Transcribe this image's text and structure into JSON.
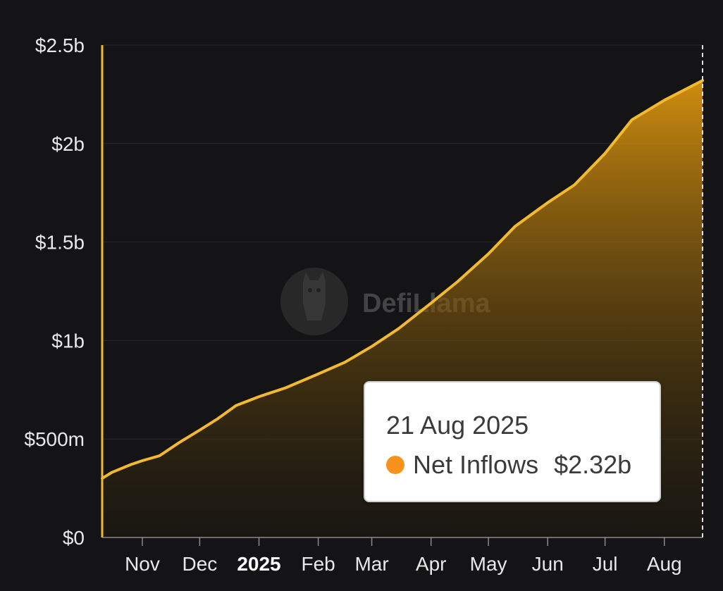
{
  "colors": {
    "background": "#141416",
    "line": "#f3ba2f",
    "area_top": "#d9930f",
    "tooltip_dot": "#f7931a",
    "grid": "#2a2a2d"
  },
  "watermark": {
    "icon": "llama-logo-icon",
    "text": "DefiLlama"
  },
  "tooltip": {
    "date": "21 Aug 2025",
    "series_name": "Net Inflows",
    "value": "$2.32b"
  },
  "chart_data": {
    "type": "area",
    "title": "",
    "xlabel": "",
    "ylabel": "",
    "ylim": [
      0,
      2500000000
    ],
    "y_ticks": [
      {
        "value": 0,
        "label": "$0"
      },
      {
        "value": 500000000,
        "label": "$500m"
      },
      {
        "value": 1000000000,
        "label": "$1b"
      },
      {
        "value": 1500000000,
        "label": "$1.5b"
      },
      {
        "value": 2000000000,
        "label": "$2b"
      },
      {
        "value": 2500000000,
        "label": "$2.5b"
      }
    ],
    "x_range": [
      "2024-10-11",
      "2025-08-21"
    ],
    "x_ticks": [
      {
        "date": "2024-11-01",
        "label": "Nov",
        "bold": false
      },
      {
        "date": "2024-12-01",
        "label": "Dec",
        "bold": false
      },
      {
        "date": "2025-01-01",
        "label": "2025",
        "bold": true
      },
      {
        "date": "2025-02-01",
        "label": "Feb",
        "bold": false
      },
      {
        "date": "2025-03-01",
        "label": "Mar",
        "bold": false
      },
      {
        "date": "2025-04-01",
        "label": "Apr",
        "bold": false
      },
      {
        "date": "2025-05-01",
        "label": "May",
        "bold": false
      },
      {
        "date": "2025-06-01",
        "label": "Jun",
        "bold": false
      },
      {
        "date": "2025-07-01",
        "label": "Jul",
        "bold": false
      },
      {
        "date": "2025-08-01",
        "label": "Aug",
        "bold": false
      }
    ],
    "grid": true,
    "series": [
      {
        "name": "Net Inflows",
        "points": [
          {
            "x": "2024-10-11",
            "y": 300000000
          },
          {
            "x": "2024-10-16",
            "y": 330000000
          },
          {
            "x": "2024-10-26",
            "y": 370000000
          },
          {
            "x": "2024-11-01",
            "y": 390000000
          },
          {
            "x": "2024-11-10",
            "y": 415000000
          },
          {
            "x": "2024-11-20",
            "y": 480000000
          },
          {
            "x": "2024-12-01",
            "y": 545000000
          },
          {
            "x": "2024-12-10",
            "y": 600000000
          },
          {
            "x": "2024-12-20",
            "y": 670000000
          },
          {
            "x": "2025-01-01",
            "y": 715000000
          },
          {
            "x": "2025-01-15",
            "y": 760000000
          },
          {
            "x": "2025-02-01",
            "y": 830000000
          },
          {
            "x": "2025-02-15",
            "y": 890000000
          },
          {
            "x": "2025-03-01",
            "y": 970000000
          },
          {
            "x": "2025-03-15",
            "y": 1060000000
          },
          {
            "x": "2025-04-01",
            "y": 1190000000
          },
          {
            "x": "2025-04-15",
            "y": 1300000000
          },
          {
            "x": "2025-05-01",
            "y": 1440000000
          },
          {
            "x": "2025-05-15",
            "y": 1580000000
          },
          {
            "x": "2025-06-01",
            "y": 1700000000
          },
          {
            "x": "2025-06-15",
            "y": 1790000000
          },
          {
            "x": "2025-07-01",
            "y": 1950000000
          },
          {
            "x": "2025-07-15",
            "y": 2120000000
          },
          {
            "x": "2025-08-01",
            "y": 2220000000
          },
          {
            "x": "2025-08-21",
            "y": 2320000000
          }
        ]
      }
    ]
  }
}
